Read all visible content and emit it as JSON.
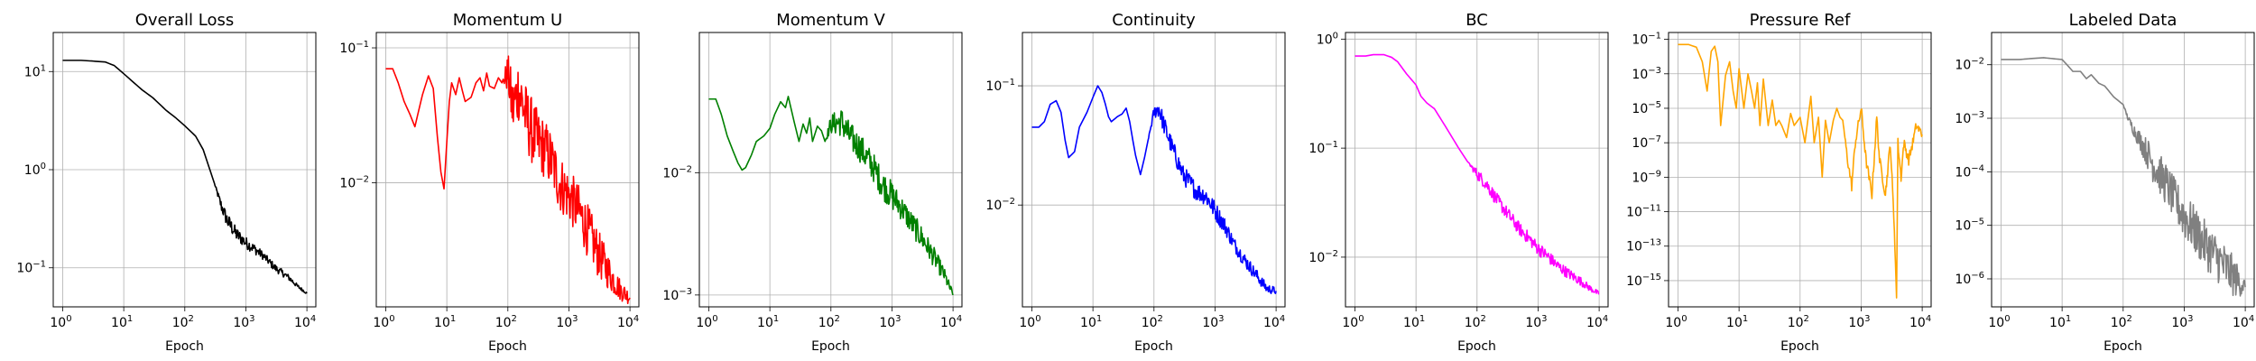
{
  "chart_data": [
    {
      "type": "line",
      "title": "Overall Loss",
      "xlabel": "Epoch",
      "ylabel": "",
      "xscale": "log",
      "yscale": "log",
      "xlim": [
        0.7,
        14000
      ],
      "ylim": [
        0.04,
        25
      ],
      "grid": true,
      "color": "#000000",
      "xticks": [
        1,
        10,
        100,
        1000,
        10000
      ],
      "yticks": [
        0.1,
        1,
        10
      ],
      "series": [
        {
          "x": [
            1,
            2,
            3,
            5,
            7,
            10,
            15,
            20,
            30,
            50,
            70,
            100,
            150,
            200,
            300,
            400,
            500,
            700,
            1000,
            1500,
            2000,
            3000,
            5000,
            7000,
            10000
          ],
          "y": [
            13,
            13,
            12.8,
            12.5,
            11.5,
            9.5,
            7.6,
            6.5,
            5.4,
            4.0,
            3.4,
            2.8,
            2.2,
            1.6,
            0.75,
            0.42,
            0.3,
            0.22,
            0.18,
            0.15,
            0.13,
            0.1,
            0.08,
            0.065,
            0.055
          ],
          "noise": [
            0,
            0,
            0,
            0,
            0,
            0,
            0,
            0,
            0,
            0,
            0,
            0,
            0,
            0,
            0,
            0.06,
            0.08,
            0.07,
            0.06,
            0.05,
            0.04,
            0.04,
            0.03,
            0.02,
            0.01
          ]
        }
      ]
    },
    {
      "type": "line",
      "title": "Momentum U",
      "xlabel": "Epoch",
      "ylabel": "",
      "xscale": "log",
      "yscale": "log",
      "xlim": [
        0.7,
        14000
      ],
      "ylim": [
        0.0012,
        0.13
      ],
      "grid": true,
      "color": "#ff0000",
      "xticks": [
        1,
        10,
        100,
        1000,
        10000
      ],
      "yticks": [
        0.01,
        0.1
      ],
      "series": [
        {
          "x": [
            1,
            1.3,
            1.6,
            2,
            2.5,
            3,
            3.5,
            4,
            5,
            6,
            7,
            8,
            9,
            10,
            11,
            12,
            14,
            16,
            18,
            20,
            25,
            30,
            35,
            40,
            45,
            50,
            60,
            70,
            80,
            100,
            120,
            150,
            200,
            300,
            400,
            500,
            700,
            1000,
            1500,
            2000,
            3000,
            5000,
            7000,
            10000
          ],
          "y": [
            0.07,
            0.07,
            0.055,
            0.04,
            0.032,
            0.026,
            0.035,
            0.045,
            0.062,
            0.05,
            0.022,
            0.012,
            0.009,
            0.02,
            0.04,
            0.055,
            0.045,
            0.06,
            0.048,
            0.04,
            0.043,
            0.055,
            0.06,
            0.048,
            0.065,
            0.052,
            0.05,
            0.06,
            0.055,
            0.065,
            0.035,
            0.05,
            0.03,
            0.02,
            0.018,
            0.015,
            0.01,
            0.008,
            0.006,
            0.0045,
            0.003,
            0.002,
            0.0016,
            0.0014
          ],
          "noise": [
            0,
            0,
            0,
            0,
            0,
            0,
            0,
            0,
            0,
            0,
            0,
            0,
            0,
            0,
            0,
            0,
            0,
            0,
            0,
            0,
            0,
            0,
            0,
            0,
            0,
            0,
            0,
            0,
            0,
            0.15,
            0.25,
            0.25,
            0.25,
            0.25,
            0.22,
            0.22,
            0.22,
            0.2,
            0.2,
            0.2,
            0.18,
            0.12,
            0.08,
            0.05
          ]
        }
      ]
    },
    {
      "type": "line",
      "title": "Momentum V",
      "xlabel": "Epoch",
      "ylabel": "",
      "xscale": "log",
      "yscale": "log",
      "xlim": [
        0.7,
        14000
      ],
      "ylim": [
        0.0008,
        0.14
      ],
      "grid": true,
      "color": "#008000",
      "xticks": [
        1,
        10,
        100,
        1000,
        10000
      ],
      "yticks": [
        0.001,
        0.01
      ],
      "series": [
        {
          "x": [
            1,
            1.3,
            1.6,
            2,
            2.5,
            3,
            3.5,
            4,
            5,
            6,
            8,
            10,
            12,
            15,
            18,
            20,
            25,
            30,
            35,
            40,
            45,
            50,
            60,
            70,
            80,
            100,
            150,
            200,
            300,
            500,
            700,
            1000,
            1500,
            2000,
            3000,
            5000,
            7000,
            10000
          ],
          "y": [
            0.04,
            0.04,
            0.03,
            0.02,
            0.015,
            0.012,
            0.0105,
            0.011,
            0.014,
            0.018,
            0.02,
            0.023,
            0.03,
            0.038,
            0.034,
            0.042,
            0.026,
            0.018,
            0.025,
            0.021,
            0.028,
            0.018,
            0.024,
            0.022,
            0.018,
            0.025,
            0.026,
            0.02,
            0.016,
            0.011,
            0.008,
            0.0065,
            0.005,
            0.004,
            0.003,
            0.002,
            0.0015,
            0.001
          ],
          "noise": [
            0,
            0,
            0,
            0,
            0,
            0,
            0,
            0,
            0,
            0,
            0,
            0,
            0,
            0,
            0,
            0,
            0,
            0,
            0,
            0,
            0,
            0,
            0,
            0,
            0,
            0.08,
            0.12,
            0.12,
            0.12,
            0.12,
            0.12,
            0.12,
            0.1,
            0.1,
            0.1,
            0.08,
            0.06,
            0.03
          ]
        }
      ]
    },
    {
      "type": "line",
      "title": "Continuity",
      "xlabel": "Epoch",
      "ylabel": "",
      "xscale": "log",
      "yscale": "log",
      "xlim": [
        0.7,
        14000
      ],
      "ylim": [
        0.0014,
        0.28
      ],
      "grid": true,
      "color": "#0000ff",
      "xticks": [
        1,
        10,
        100,
        1000,
        10000
      ],
      "yticks": [
        0.01,
        0.1
      ],
      "series": [
        {
          "x": [
            1,
            1.3,
            1.6,
            2,
            2.5,
            3,
            3.5,
            4,
            5,
            6,
            8,
            10,
            12,
            14,
            16,
            18,
            20,
            25,
            30,
            35,
            40,
            45,
            50,
            60,
            70,
            80,
            100,
            120,
            150,
            200,
            300,
            500,
            700,
            1000,
            1500,
            2000,
            3000,
            5000,
            7000,
            10000
          ],
          "y": [
            0.045,
            0.045,
            0.05,
            0.07,
            0.075,
            0.06,
            0.035,
            0.025,
            0.028,
            0.045,
            0.06,
            0.08,
            0.1,
            0.088,
            0.07,
            0.055,
            0.05,
            0.055,
            0.058,
            0.065,
            0.05,
            0.035,
            0.026,
            0.018,
            0.025,
            0.035,
            0.06,
            0.065,
            0.045,
            0.03,
            0.018,
            0.013,
            0.012,
            0.009,
            0.0065,
            0.0048,
            0.0035,
            0.0025,
            0.002,
            0.0019
          ],
          "noise": [
            0,
            0,
            0,
            0,
            0,
            0,
            0,
            0,
            0,
            0,
            0,
            0,
            0,
            0,
            0,
            0,
            0,
            0,
            0,
            0,
            0,
            0,
            0,
            0,
            0,
            0,
            0.05,
            0.08,
            0.08,
            0.08,
            0.08,
            0.08,
            0.08,
            0.08,
            0.07,
            0.06,
            0.06,
            0.05,
            0.04,
            0.03
          ]
        }
      ]
    },
    {
      "type": "line",
      "title": "BC",
      "xlabel": "Epoch",
      "ylabel": "",
      "xscale": "log",
      "yscale": "log",
      "xlim": [
        0.7,
        14000
      ],
      "ylim": [
        0.0035,
        1.15
      ],
      "grid": true,
      "color": "#ff00ff",
      "xticks": [
        1,
        10,
        100,
        1000,
        10000
      ],
      "yticks": [
        0.01,
        0.1,
        1
      ],
      "series": [
        {
          "x": [
            1,
            1.5,
            2,
            3,
            4,
            5,
            7,
            10,
            12,
            15,
            20,
            30,
            50,
            70,
            100,
            150,
            200,
            300,
            500,
            700,
            1000,
            1500,
            2000,
            3000,
            5000,
            7000,
            10000
          ],
          "y": [
            0.7,
            0.7,
            0.72,
            0.72,
            0.68,
            0.62,
            0.48,
            0.38,
            0.3,
            0.26,
            0.23,
            0.16,
            0.1,
            0.075,
            0.058,
            0.045,
            0.035,
            0.026,
            0.018,
            0.015,
            0.012,
            0.01,
            0.0085,
            0.0072,
            0.006,
            0.0052,
            0.0046
          ],
          "noise": [
            0,
            0,
            0,
            0,
            0,
            0,
            0,
            0,
            0,
            0,
            0,
            0,
            0,
            0,
            0.05,
            0.06,
            0.06,
            0.06,
            0.06,
            0.06,
            0.06,
            0.06,
            0.05,
            0.05,
            0.04,
            0.03,
            0.02
          ]
        }
      ]
    },
    {
      "type": "line",
      "title": "Pressure Ref",
      "xlabel": "Epoch",
      "ylabel": "",
      "xscale": "log",
      "yscale": "log",
      "xlim": [
        0.7,
        14000
      ],
      "ylim": [
        3e-17,
        0.25
      ],
      "grid": true,
      "color": "#ffa500",
      "xticks": [
        1,
        10,
        100,
        1000,
        10000
      ],
      "yticks": [
        1e-15,
        1e-13,
        1e-11,
        1e-09,
        1e-07,
        1e-05,
        0.001,
        0.1
      ],
      "series": [
        {
          "x": [
            1,
            1.5,
            2,
            2.5,
            3,
            3.5,
            4,
            4.5,
            5,
            6,
            7,
            8,
            9,
            10,
            12,
            14,
            16,
            18,
            20,
            22,
            25,
            28,
            30,
            35,
            40,
            45,
            50,
            60,
            70,
            80,
            100,
            120,
            150,
            170,
            200,
            230,
            260,
            300,
            350,
            400,
            450,
            500,
            600,
            700,
            800,
            1000,
            1200,
            1500,
            1800,
            2000,
            2500,
            3000,
            3500,
            3800,
            4000,
            4500,
            5000,
            6000,
            7000,
            8000,
            10000
          ],
          "y": [
            0.05,
            0.05,
            0.035,
            0.005,
            0.0001,
            0.02,
            0.04,
            0.005,
            1e-06,
            0.0008,
            0.005,
            0.0001,
            1e-05,
            0.002,
            1e-05,
            0.001,
            0.0001,
            1e-05,
            0.0003,
            1e-06,
            0.0005,
            1e-05,
            1e-06,
            3e-05,
            1e-06,
            2e-06,
            1e-06,
            2e-07,
            5e-06,
            1e-06,
            3e-06,
            1e-07,
            5e-05,
            1e-07,
            3e-06,
            1e-09,
            2e-06,
            1e-07,
            2e-06,
            1e-05,
            3e-06,
            2e-06,
            1e-08,
            3e-10,
            1e-07,
            1e-05,
            1e-08,
            1e-10,
            3e-06,
            1e-08,
            1e-10,
            1e-07,
            1e-12,
            1e-16,
            1e-07,
            1e-09,
            1e-07,
            1e-08,
            1e-07,
            1e-06,
            3e-07
          ],
          "noise": [
            0,
            0,
            0,
            0,
            0,
            0,
            0,
            0,
            0,
            0,
            0,
            0,
            0,
            0,
            0,
            0,
            0,
            0,
            0,
            0,
            0,
            0,
            0,
            0,
            0,
            0,
            0,
            0,
            0,
            0,
            0,
            0,
            0,
            0,
            0,
            0,
            0,
            0,
            0,
            0,
            0,
            0,
            0.3,
            0.3,
            0.3,
            0.3,
            0.3,
            0.3,
            0.3,
            0.3,
            0.3,
            0.3,
            0.3,
            0,
            0.3,
            0.3,
            0.3,
            0.3,
            0.3,
            0.3,
            0.3
          ]
        }
      ]
    },
    {
      "type": "line",
      "title": "Labeled Data",
      "xlabel": "Epoch",
      "ylabel": "",
      "xscale": "log",
      "yscale": "log",
      "xlim": [
        0.7,
        14000
      ],
      "ylim": [
        3e-07,
        0.04
      ],
      "grid": true,
      "color": "#808080",
      "xticks": [
        1,
        10,
        100,
        1000,
        10000
      ],
      "yticks": [
        1e-06,
        1e-05,
        0.0001,
        0.001,
        0.01
      ],
      "series": [
        {
          "x": [
            1,
            2,
            3,
            5,
            7,
            10,
            12,
            15,
            20,
            25,
            30,
            40,
            50,
            70,
            100,
            120,
            150,
            200,
            300,
            500,
            700,
            1000,
            1500,
            2000,
            3000,
            5000,
            7000,
            10000
          ],
          "y": [
            0.0125,
            0.0125,
            0.013,
            0.0135,
            0.013,
            0.0125,
            0.01,
            0.0075,
            0.0075,
            0.0055,
            0.0065,
            0.0045,
            0.004,
            0.0025,
            0.0018,
            0.001,
            0.0006,
            0.00035,
            0.00015,
            6e-05,
            3e-05,
            1.5e-05,
            8e-06,
            5e-06,
            3e-06,
            1.5e-06,
            1e-06,
            7e-07
          ],
          "noise": [
            0,
            0,
            0,
            0,
            0,
            0,
            0,
            0,
            0,
            0,
            0,
            0,
            0,
            0,
            0,
            0.05,
            0.12,
            0.2,
            0.35,
            0.4,
            0.4,
            0.45,
            0.45,
            0.45,
            0.45,
            0.45,
            0.35,
            0.15
          ]
        }
      ]
    }
  ]
}
